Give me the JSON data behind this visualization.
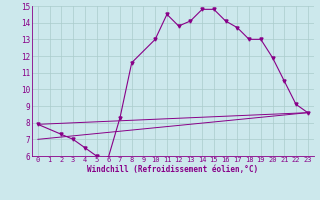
{
  "bg_color": "#cce8ec",
  "grid_color": "#aacccc",
  "line_color": "#880088",
  "xlabel": "Windchill (Refroidissement éolien,°C)",
  "xlim": [
    -0.5,
    23.5
  ],
  "ylim": [
    6,
    15
  ],
  "xtick_labels": [
    "0",
    "1",
    "2",
    "3",
    "4",
    "5",
    "6",
    "7",
    "8",
    "9",
    "10",
    "11",
    "12",
    "13",
    "14",
    "15",
    "16",
    "17",
    "18",
    "19",
    "20",
    "21",
    "22",
    "23"
  ],
  "xtick_pos": [
    0,
    1,
    2,
    3,
    4,
    5,
    6,
    7,
    8,
    9,
    10,
    11,
    12,
    13,
    14,
    15,
    16,
    17,
    18,
    19,
    20,
    21,
    22,
    23
  ],
  "yticks": [
    6,
    7,
    8,
    9,
    10,
    11,
    12,
    13,
    14,
    15
  ],
  "series1_x": [
    0,
    2,
    3,
    4,
    5,
    6,
    7,
    8,
    10,
    11,
    12,
    13,
    14,
    15,
    16,
    17,
    18,
    19,
    20,
    21,
    22,
    23
  ],
  "series1_y": [
    7.9,
    7.3,
    7.0,
    6.5,
    6.0,
    5.9,
    8.3,
    11.6,
    13.0,
    14.5,
    13.8,
    14.1,
    14.8,
    14.8,
    14.1,
    13.7,
    13.0,
    13.0,
    11.9,
    10.5,
    9.1,
    8.6
  ],
  "series2_x": [
    0,
    23
  ],
  "series2_y": [
    7.9,
    8.6
  ],
  "series3_x": [
    0,
    23
  ],
  "series3_y": [
    7.0,
    8.6
  ]
}
